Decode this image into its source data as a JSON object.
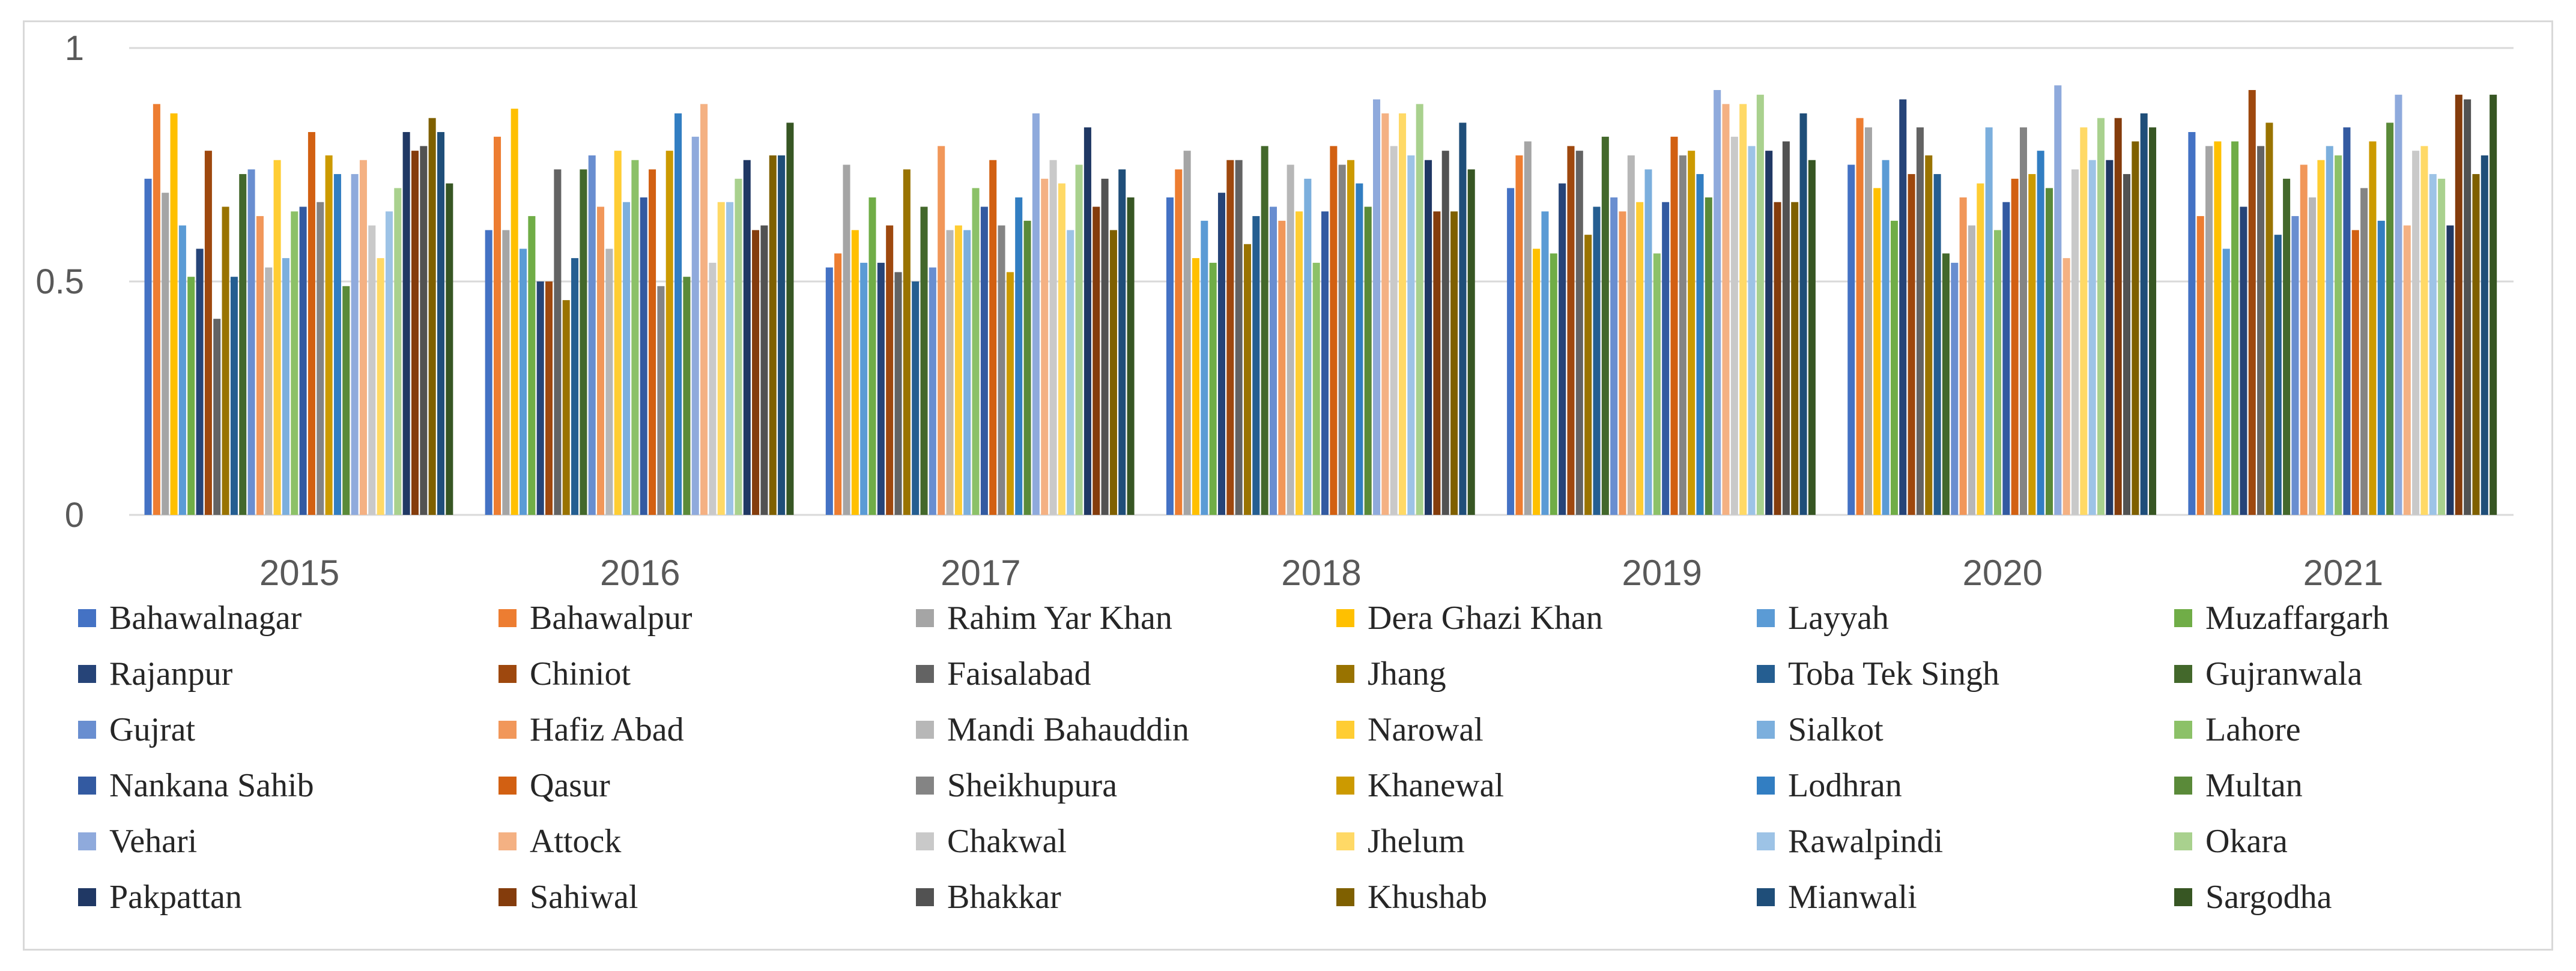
{
  "chart_data": {
    "type": "bar",
    "title": "",
    "xlabel": "",
    "ylabel": "",
    "ylim": [
      0,
      1
    ],
    "yticks": [
      {
        "value": 0,
        "label": "0"
      },
      {
        "value": 0.5,
        "label": "0.5"
      },
      {
        "value": 1,
        "label": "1"
      }
    ],
    "grid": true,
    "legend_position": "bottom",
    "categories": [
      "2015",
      "2016",
      "2017",
      "2018",
      "2019",
      "2020",
      "2021"
    ],
    "series": [
      {
        "name": "Bahawalnagar",
        "color": "#4472C4",
        "values": [
          0.72,
          0.61,
          0.53,
          0.68,
          0.7,
          0.75,
          0.82
        ]
      },
      {
        "name": "Bahawalpur",
        "color": "#ED7D31",
        "values": [
          0.88,
          0.81,
          0.56,
          0.74,
          0.77,
          0.85,
          0.64
        ]
      },
      {
        "name": "Rahim Yar Khan",
        "color": "#A5A5A5",
        "values": [
          0.69,
          0.61,
          0.75,
          0.78,
          0.8,
          0.83,
          0.79
        ]
      },
      {
        "name": "Dera Ghazi Khan",
        "color": "#FFC000",
        "values": [
          0.86,
          0.87,
          0.61,
          0.55,
          0.57,
          0.7,
          0.8
        ]
      },
      {
        "name": "Layyah",
        "color": "#5B9BD5",
        "values": [
          0.62,
          0.57,
          0.54,
          0.63,
          0.65,
          0.76,
          0.57
        ]
      },
      {
        "name": "Muzaffargarh",
        "color": "#70AD47",
        "values": [
          0.51,
          0.64,
          0.68,
          0.54,
          0.56,
          0.63,
          0.8
        ]
      },
      {
        "name": "Rajanpur",
        "color": "#264478",
        "values": [
          0.57,
          0.5,
          0.54,
          0.69,
          0.71,
          0.89,
          0.66
        ]
      },
      {
        "name": "Chiniot",
        "color": "#9E480E",
        "values": [
          0.78,
          0.5,
          0.62,
          0.76,
          0.79,
          0.73,
          0.91
        ]
      },
      {
        "name": "Faisalabad",
        "color": "#636363",
        "values": [
          0.42,
          0.74,
          0.52,
          0.76,
          0.78,
          0.83,
          0.79
        ]
      },
      {
        "name": "Jhang",
        "color": "#997300",
        "values": [
          0.66,
          0.46,
          0.74,
          0.58,
          0.6,
          0.77,
          0.84
        ]
      },
      {
        "name": "Toba Tek Singh",
        "color": "#255E91",
        "values": [
          0.51,
          0.55,
          0.5,
          0.64,
          0.66,
          0.73,
          0.6
        ]
      },
      {
        "name": "Gujranwala",
        "color": "#43682B",
        "values": [
          0.73,
          0.74,
          0.66,
          0.79,
          0.81,
          0.56,
          0.72
        ]
      },
      {
        "name": "Gujrat",
        "color": "#698ED0",
        "values": [
          0.74,
          0.77,
          0.53,
          0.66,
          0.68,
          0.54,
          0.64
        ]
      },
      {
        "name": "Hafiz Abad",
        "color": "#F1975A",
        "values": [
          0.64,
          0.66,
          0.79,
          0.63,
          0.65,
          0.68,
          0.75
        ]
      },
      {
        "name": "Mandi Bahauddin",
        "color": "#B7B7B7",
        "values": [
          0.53,
          0.57,
          0.61,
          0.75,
          0.77,
          0.62,
          0.68
        ]
      },
      {
        "name": "Narowal",
        "color": "#FFCD33",
        "values": [
          0.76,
          0.78,
          0.62,
          0.65,
          0.67,
          0.71,
          0.76
        ]
      },
      {
        "name": "Sialkot",
        "color": "#7CAFDD",
        "values": [
          0.55,
          0.67,
          0.61,
          0.72,
          0.74,
          0.83,
          0.79
        ]
      },
      {
        "name": "Lahore",
        "color": "#8CC168",
        "values": [
          0.65,
          0.76,
          0.7,
          0.54,
          0.56,
          0.61,
          0.77
        ]
      },
      {
        "name": "Nankana Sahib",
        "color": "#335AA1",
        "values": [
          0.66,
          0.68,
          0.66,
          0.65,
          0.67,
          0.67,
          0.83
        ]
      },
      {
        "name": "Qasur",
        "color": "#D26012",
        "values": [
          0.82,
          0.74,
          0.76,
          0.79,
          0.81,
          0.72,
          0.61
        ]
      },
      {
        "name": "Sheikhupura",
        "color": "#848484",
        "values": [
          0.67,
          0.49,
          0.62,
          0.75,
          0.77,
          0.83,
          0.7
        ]
      },
      {
        "name": "Khanewal",
        "color": "#CC9A00",
        "values": [
          0.77,
          0.78,
          0.52,
          0.76,
          0.78,
          0.73,
          0.8
        ]
      },
      {
        "name": "Lodhran",
        "color": "#327EC2",
        "values": [
          0.73,
          0.86,
          0.68,
          0.71,
          0.73,
          0.78,
          0.63
        ]
      },
      {
        "name": "Multan",
        "color": "#5A8A39",
        "values": [
          0.49,
          0.51,
          0.63,
          0.66,
          0.68,
          0.7,
          0.84
        ]
      },
      {
        "name": "Vehari",
        "color": "#8FAADC",
        "values": [
          0.73,
          0.81,
          0.86,
          0.89,
          0.91,
          0.92,
          0.9
        ]
      },
      {
        "name": "Attock",
        "color": "#F4B183",
        "values": [
          0.76,
          0.88,
          0.72,
          0.86,
          0.88,
          0.55,
          0.62
        ]
      },
      {
        "name": "Chakwal",
        "color": "#C9C9C9",
        "values": [
          0.62,
          0.54,
          0.76,
          0.79,
          0.81,
          0.74,
          0.78
        ]
      },
      {
        "name": "Jhelum",
        "color": "#FFD966",
        "values": [
          0.55,
          0.67,
          0.71,
          0.86,
          0.88,
          0.83,
          0.79
        ]
      },
      {
        "name": "Rawalpindi",
        "color": "#9DC3E6",
        "values": [
          0.65,
          0.67,
          0.61,
          0.77,
          0.79,
          0.76,
          0.73
        ]
      },
      {
        "name": "Okara",
        "color": "#A9D18E",
        "values": [
          0.7,
          0.72,
          0.75,
          0.88,
          0.9,
          0.85,
          0.72
        ]
      },
      {
        "name": "Pakpattan",
        "color": "#203864",
        "values": [
          0.82,
          0.76,
          0.83,
          0.76,
          0.78,
          0.76,
          0.62
        ]
      },
      {
        "name": "Sahiwal",
        "color": "#843C0C",
        "values": [
          0.78,
          0.61,
          0.66,
          0.65,
          0.67,
          0.85,
          0.9
        ]
      },
      {
        "name": "Bhakkar",
        "color": "#525252",
        "values": [
          0.79,
          0.62,
          0.72,
          0.78,
          0.8,
          0.73,
          0.89
        ]
      },
      {
        "name": "Khushab",
        "color": "#7F6000",
        "values": [
          0.85,
          0.77,
          0.61,
          0.65,
          0.67,
          0.8,
          0.73
        ]
      },
      {
        "name": "Mianwali",
        "color": "#1F4E79",
        "values": [
          0.82,
          0.77,
          0.74,
          0.84,
          0.86,
          0.86,
          0.77
        ]
      },
      {
        "name": "Sargodha",
        "color": "#375623",
        "values": [
          0.71,
          0.84,
          0.68,
          0.74,
          0.76,
          0.83,
          0.9
        ]
      }
    ]
  }
}
